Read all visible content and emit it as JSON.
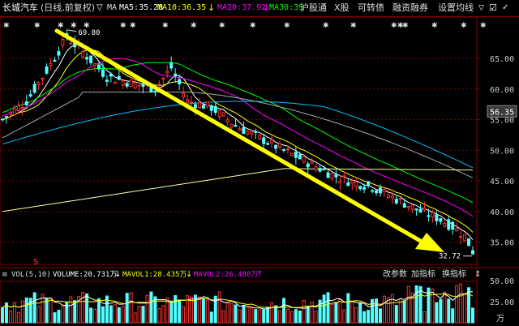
{
  "header": {
    "stock_name": "长城汽车",
    "period": "(日线,前复权)",
    "ma_toggle": "MA",
    "ma5": "MA5:35.28",
    "ma10": "MA10:36.35",
    "ma20": "MA20:37.92",
    "ma30": "MA30:39",
    "hk_connect": "沪股通",
    "x_share": "X股",
    "convertible": "可转债",
    "margin": "融资融券",
    "settings": "设置均线"
  },
  "price_axis": {
    "ticks": [
      "65.00",
      "60.00",
      "55.00",
      "50.00",
      "45.00",
      "40.00",
      "35.00"
    ],
    "current_price": "56.35"
  },
  "annotations": {
    "high": "69.80",
    "low": "32.72",
    "marker_s": "S"
  },
  "volume_header": {
    "label": "VOL(5,10)",
    "volume": "VOLUME:20.731万",
    "mavol1": "MAVOL1:28.435万",
    "mavol2": "MAVOL2:26.488万",
    "btn_params": "改参数",
    "btn_add": "加指标",
    "btn_switch": "换指标"
  },
  "volume_axis": {
    "ticks": [
      "50.00",
      "25.00",
      "万"
    ]
  },
  "colors": {
    "up": "#ff3232",
    "down": "#54ffff",
    "ma5": "#ffffff",
    "ma10": "#ffff00",
    "ma20": "#ff00ff",
    "ma30": "#00ff00",
    "ma60": "#00c0ff",
    "ma120": "#aaaaaa",
    "ma250": "#ffffa0",
    "trend_arrow": "#ffff00"
  },
  "chart_data": {
    "type": "candlestick",
    "y_axis": {
      "min": 32,
      "max": 70,
      "ticks": [
        35,
        40,
        45,
        50,
        55,
        60,
        65
      ]
    },
    "highlight_price": 56.35,
    "high": 69.8,
    "low": 32.72
  }
}
